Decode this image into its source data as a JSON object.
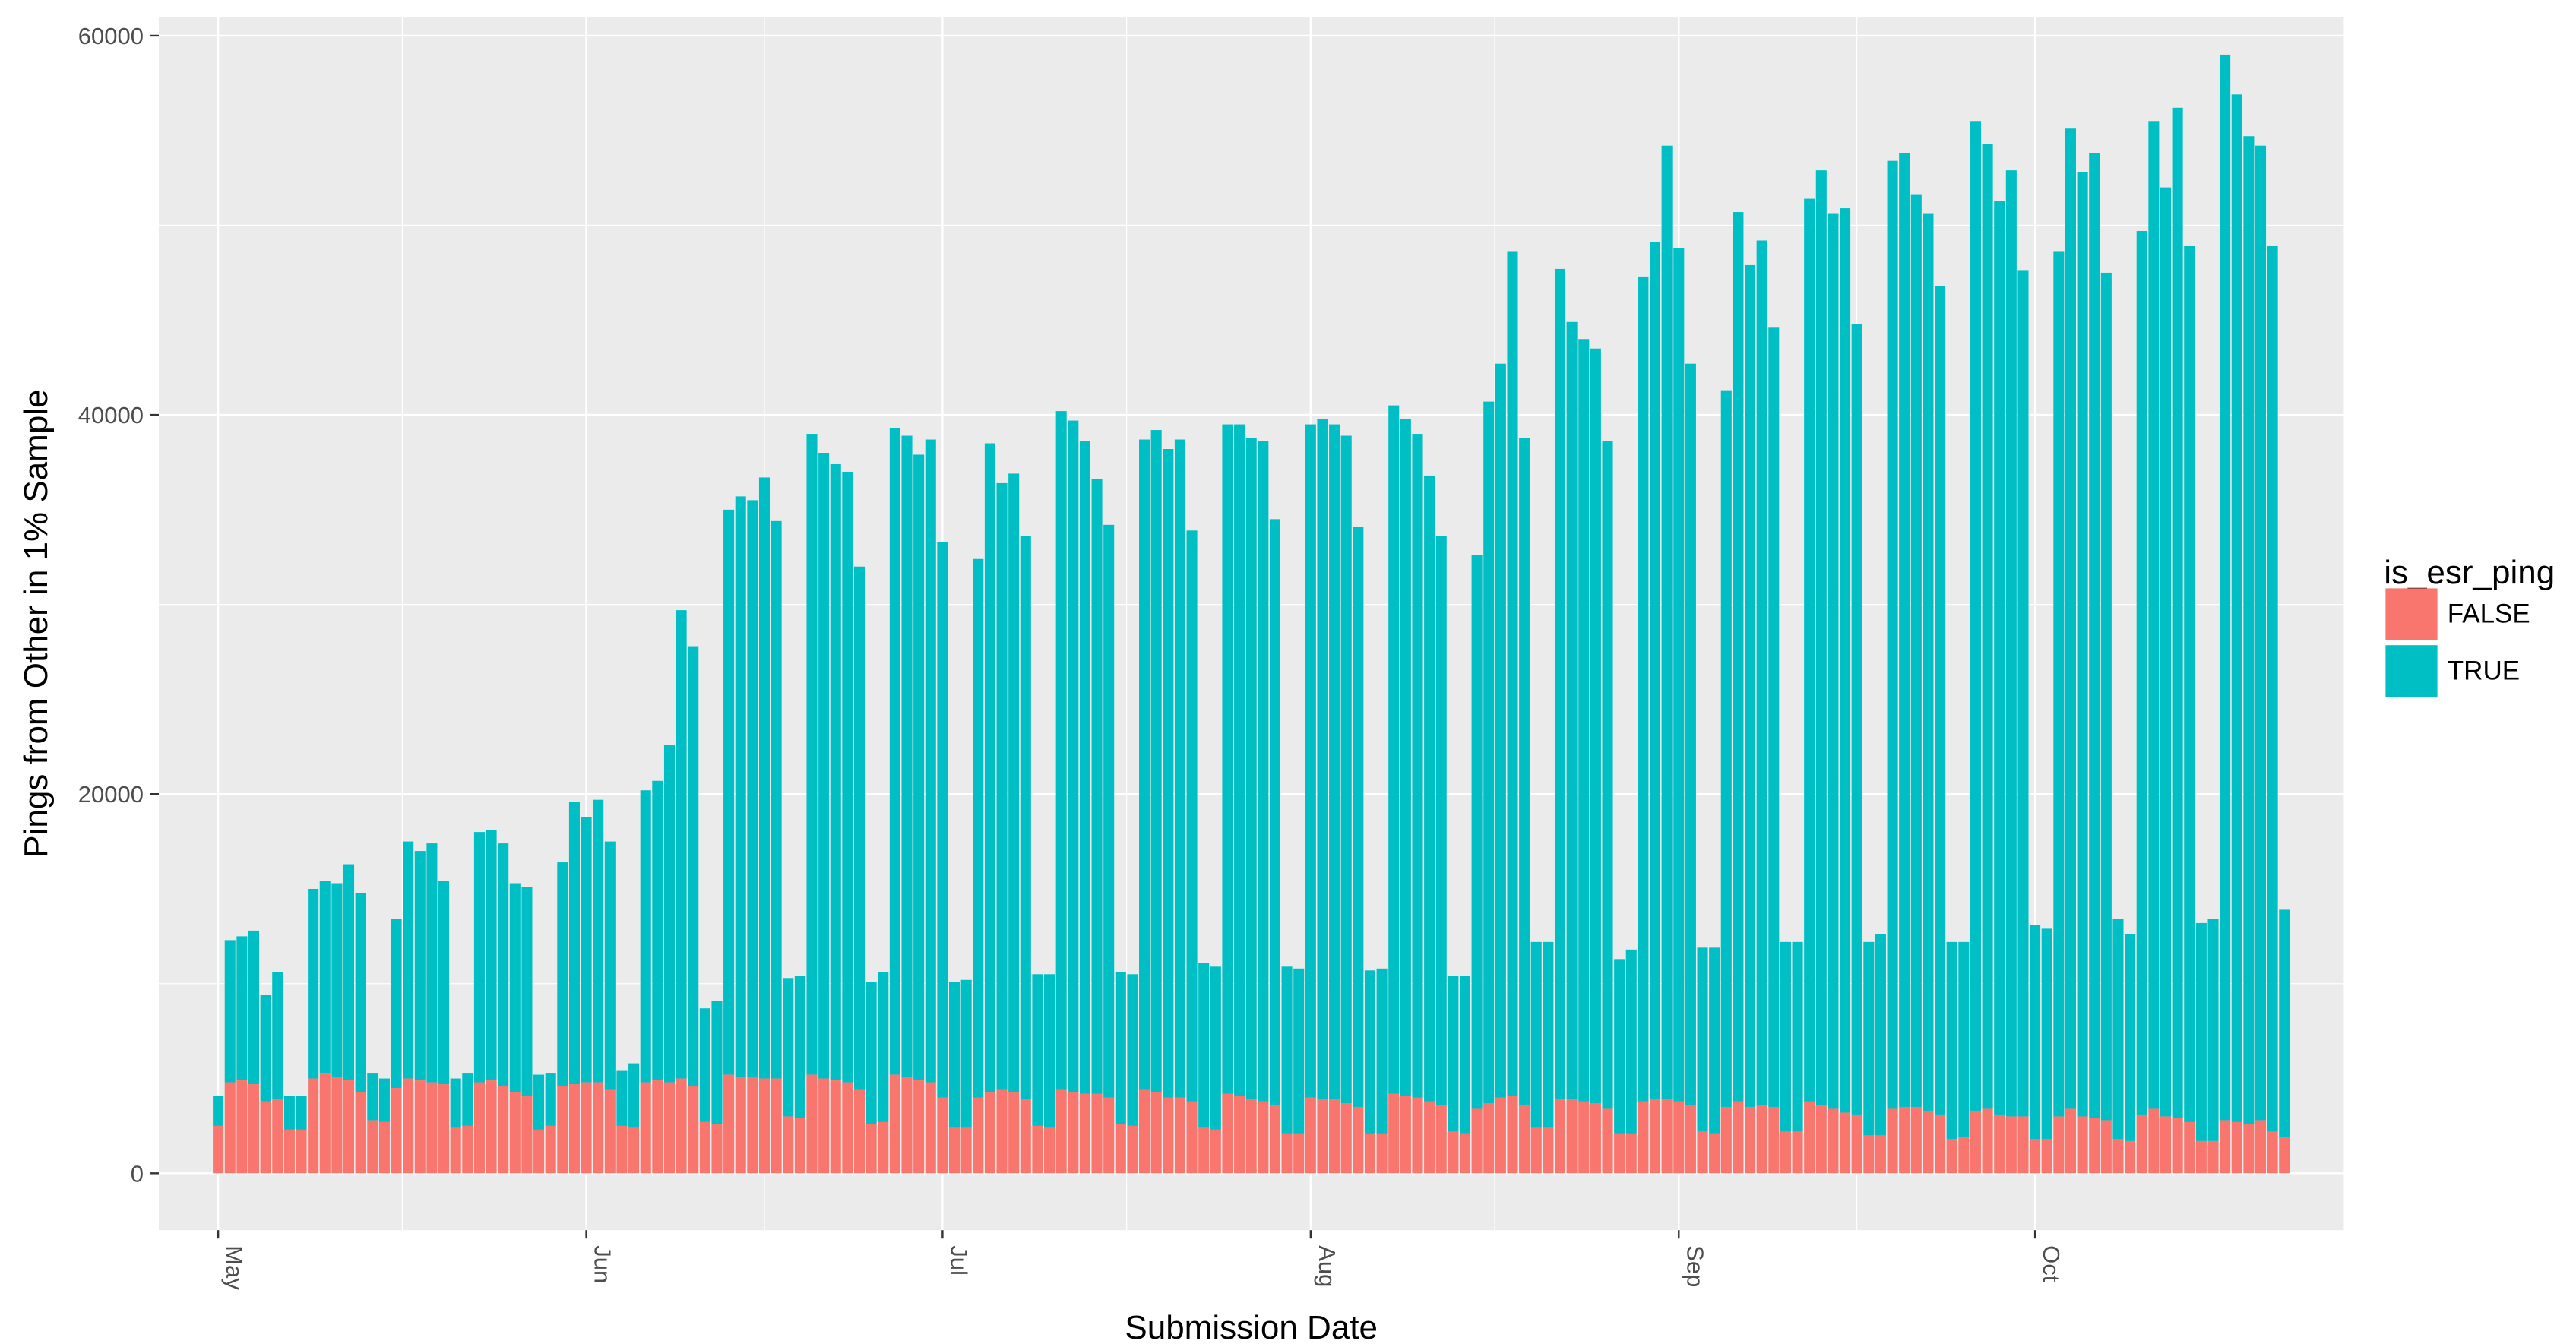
{
  "chart_data": {
    "type": "bar",
    "stacked": true,
    "title": "",
    "xlabel": "Submission Date",
    "ylabel": "Pings from Other in 1% Sample",
    "ylim": [
      -3000,
      61000
    ],
    "xlim": [
      "2017-04-26",
      "2017-10-27"
    ],
    "y_ticks": [
      0,
      20000,
      40000,
      60000
    ],
    "y_tick_labels": [
      "0",
      "20000",
      "40000",
      "60000"
    ],
    "x_ticks": [
      "2017-05-01",
      "2017-06-01",
      "2017-07-01",
      "2017-08-01",
      "2017-09-01",
      "2017-10-01"
    ],
    "x_tick_labels": [
      "May",
      "Jun",
      "Jul",
      "Aug",
      "Sep",
      "Oct"
    ],
    "x_tick_label_rotation": 90,
    "panel_background": "#ebebeb",
    "grid": true,
    "legend": {
      "title": "is_esr_ping",
      "position": "right",
      "entries": [
        {
          "label": "FALSE",
          "color": "#f8766d"
        },
        {
          "label": "TRUE",
          "color": "#00bfc4"
        }
      ]
    },
    "series": [
      {
        "name": "FALSE",
        "color": "#f8766d"
      },
      {
        "name": "TRUE",
        "color": "#00bfc4"
      }
    ],
    "start_date": "2017-05-01",
    "totals": [
      4100,
      12300,
      12500,
      12800,
      9400,
      10600,
      4100,
      4100,
      15000,
      15400,
      15300,
      16300,
      14800,
      5300,
      5000,
      13400,
      17500,
      17000,
      17400,
      15400,
      5000,
      5300,
      18000,
      18100,
      17400,
      15300,
      15100,
      5200,
      5300,
      16400,
      19600,
      18800,
      19700,
      17500,
      5400,
      5800,
      20200,
      20700,
      22600,
      29700,
      27800,
      8700,
      9100,
      35000,
      35700,
      35500,
      36700,
      34400,
      10300,
      10400,
      39000,
      38000,
      37400,
      37000,
      32000,
      10100,
      10600,
      39300,
      38900,
      37900,
      38700,
      33300,
      10100,
      10200,
      32400,
      38500,
      36400,
      36900,
      33600,
      10500,
      10500,
      40200,
      39700,
      38600,
      36600,
      34200,
      10600,
      10500,
      38700,
      39200,
      38200,
      38700,
      33900,
      11100,
      10900,
      39500,
      39500,
      38800,
      38600,
      34500,
      10900,
      10800,
      39500,
      39800,
      39500,
      38900,
      34100,
      10700,
      10800,
      40500,
      39800,
      39000,
      36800,
      33600,
      10400,
      10400,
      32600,
      40700,
      42700,
      48600,
      38800,
      12200,
      12200,
      47700,
      44900,
      44000,
      43500,
      38600,
      11300,
      11800,
      47300,
      49100,
      54200,
      48800,
      42700,
      11900,
      11900,
      41300,
      50700,
      47900,
      49200,
      44600,
      12200,
      12200,
      51400,
      52900,
      50600,
      50900,
      44800,
      12200,
      12600,
      53400,
      53800,
      51600,
      50600,
      46800,
      12200,
      12200,
      55500,
      54300,
      51300,
      52900,
      47600,
      13100,
      12900,
      48600,
      55100,
      52800,
      53800,
      47500,
      13400,
      12600,
      49700,
      55500,
      52000,
      56200,
      48900,
      13200,
      13400,
      59000,
      56900,
      54700,
      54200,
      48900,
      13900
    ],
    "false_values": [
      2500,
      4800,
      4900,
      4700,
      3800,
      3900,
      2300,
      2300,
      5000,
      5300,
      5100,
      4900,
      4300,
      2800,
      2700,
      4500,
      5000,
      4900,
      4800,
      4700,
      2400,
      2500,
      4800,
      4900,
      4600,
      4300,
      4100,
      2300,
      2500,
      4600,
      4700,
      4800,
      4800,
      4400,
      2500,
      2400,
      4800,
      4900,
      4800,
      5000,
      4600,
      2700,
      2600,
      5200,
      5100,
      5100,
      5000,
      5000,
      3000,
      2900,
      5200,
      5000,
      4900,
      4800,
      4400,
      2600,
      2700,
      5200,
      5100,
      4900,
      4800,
      4000,
      2400,
      2400,
      4000,
      4300,
      4400,
      4300,
      3900,
      2500,
      2400,
      4400,
      4300,
      4200,
      4200,
      4000,
      2600,
      2500,
      4400,
      4300,
      4000,
      4000,
      3800,
      2400,
      2300,
      4200,
      4100,
      3900,
      3800,
      3600,
      2100,
      2100,
      4000,
      3900,
      3900,
      3700,
      3500,
      2100,
      2100,
      4200,
      4100,
      4000,
      3800,
      3600,
      2200,
      2100,
      3400,
      3700,
      4000,
      4100,
      3600,
      2400,
      2400,
      3900,
      3900,
      3800,
      3700,
      3400,
      2100,
      2100,
      3800,
      3900,
      3900,
      3800,
      3600,
      2200,
      2100,
      3500,
      3800,
      3500,
      3600,
      3500,
      2200,
      2200,
      3800,
      3600,
      3400,
      3200,
      3100,
      2000,
      2000,
      3400,
      3500,
      3500,
      3300,
      3100,
      1800,
      1900,
      3300,
      3400,
      3100,
      3000,
      3000,
      1800,
      1800,
      3000,
      3400,
      3000,
      2900,
      2800,
      1800,
      1700,
      3100,
      3400,
      3000,
      2900,
      2700,
      1700,
      1700,
      2800,
      2700,
      2600,
      2800,
      2200,
      1900
    ]
  }
}
